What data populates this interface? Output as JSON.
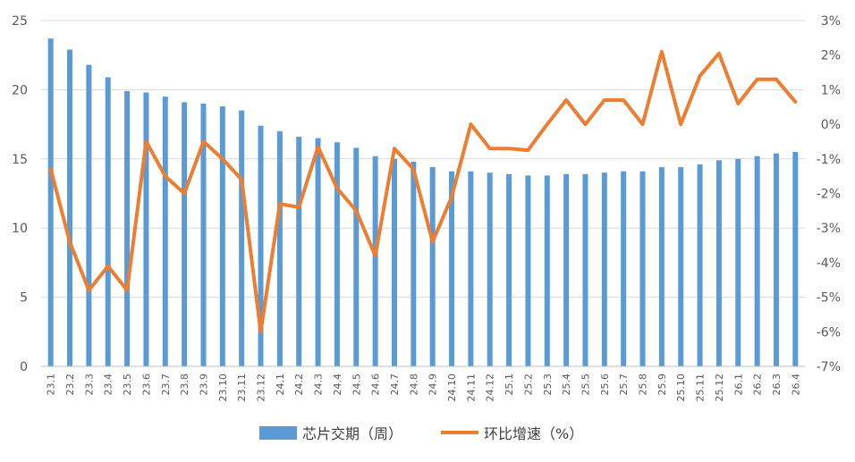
{
  "chart_data": {
    "type": "bar+line",
    "categories": [
      "23.1",
      "23.2",
      "23.3",
      "23.4",
      "23.5",
      "23.6",
      "23.7",
      "23.8",
      "23.9",
      "23.10",
      "23.11",
      "23.12",
      "24.1",
      "24.2",
      "24.3",
      "24.4",
      "24.5",
      "24.6",
      "24.7",
      "24.8",
      "24.9",
      "24.10",
      "24.11",
      "24.12",
      "25.1",
      "25.2",
      "25.3",
      "25.4",
      "25.5",
      "25.6",
      "25.7",
      "25.8",
      "25.9",
      "25.10",
      "25.11",
      "25.12",
      "26.1",
      "26.2",
      "26.3",
      "26.4"
    ],
    "series": [
      {
        "name": "芯片交期（周）",
        "type": "bar",
        "axis": "left",
        "color": "#5b9bd5",
        "values": [
          23.7,
          22.9,
          21.8,
          20.9,
          19.9,
          19.8,
          19.5,
          19.1,
          19.0,
          18.8,
          18.5,
          17.4,
          17.0,
          16.6,
          16.5,
          16.2,
          15.8,
          15.2,
          15.0,
          14.8,
          14.4,
          14.1,
          14.1,
          14.0,
          13.9,
          13.8,
          13.8,
          13.9,
          13.9,
          14.0,
          14.1,
          14.1,
          14.4,
          14.4,
          14.6,
          14.9,
          15.0,
          15.2,
          15.4,
          15.5
        ]
      },
      {
        "name": "环比增速（%）",
        "type": "line",
        "axis": "right",
        "color": "#ed7d31",
        "values": [
          -1.3,
          -3.4,
          -4.8,
          -4.1,
          -4.8,
          -0.5,
          -1.5,
          -2.0,
          -0.5,
          -1.0,
          -1.6,
          -6.0,
          -2.3,
          -2.4,
          -0.65,
          -1.85,
          -2.5,
          -3.8,
          -0.7,
          -1.3,
          -3.4,
          -2.1,
          0.0,
          -0.7,
          -0.7,
          -0.75,
          0.0,
          0.7,
          0.0,
          0.7,
          0.7,
          0.0,
          2.1,
          0.0,
          1.4,
          2.05,
          0.6,
          1.3,
          1.3,
          0.65
        ]
      }
    ],
    "y_left": {
      "min": 0,
      "max": 25,
      "ticks": [
        "0",
        "5",
        "10",
        "15",
        "20",
        "25"
      ]
    },
    "y_right": {
      "min": -7,
      "max": 3,
      "ticks": [
        "-7%",
        "-6%",
        "-5%",
        "-4%",
        "-3%",
        "-2%",
        "-1%",
        "0%",
        "1%",
        "2%",
        "3%"
      ]
    },
    "grid": true,
    "legend_position": "bottom"
  }
}
